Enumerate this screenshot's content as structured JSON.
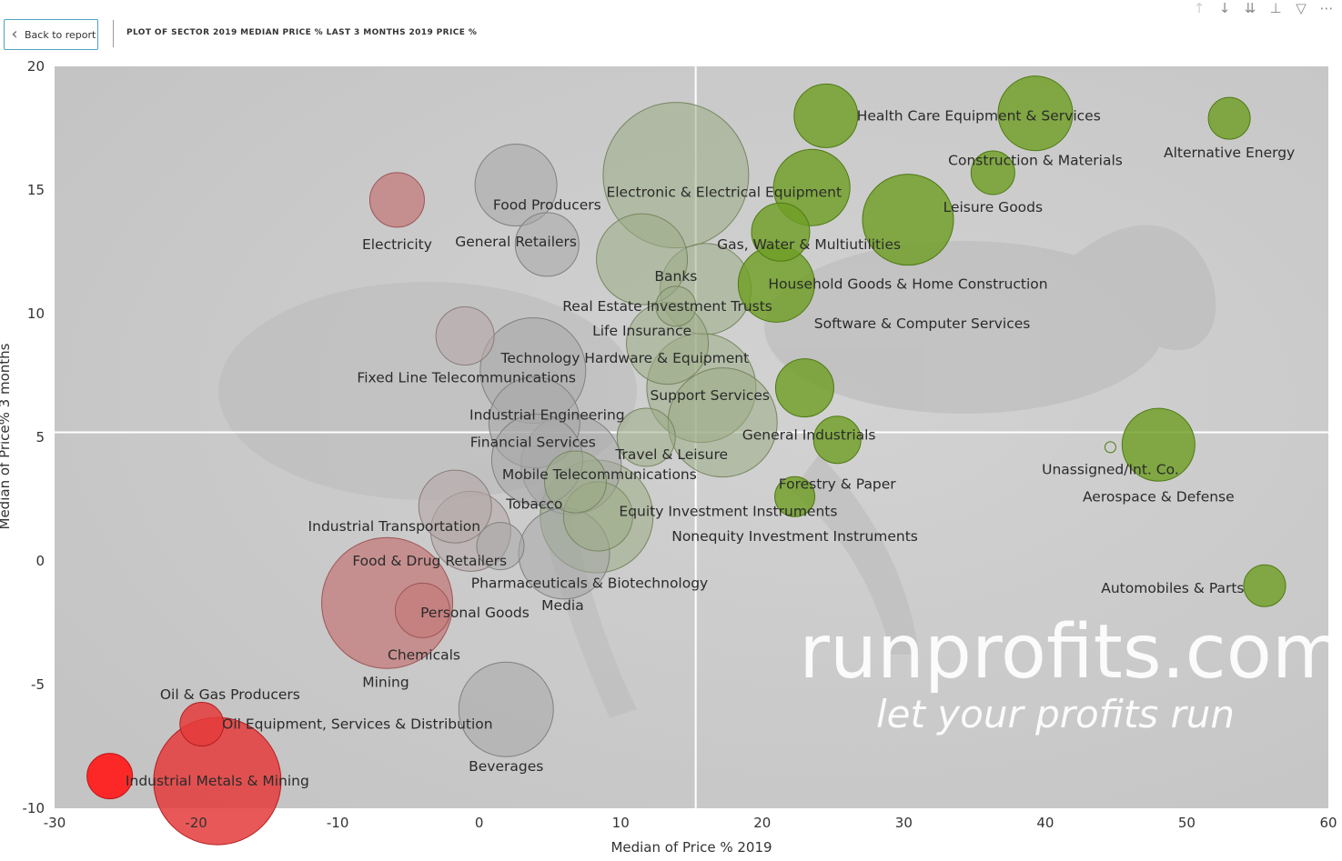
{
  "header": {
    "back_label": "Back to report",
    "title": "PLOT OF SECTOR 2019 MEDIAN PRICE % LAST 3 MONTHS 2019 PRICE %"
  },
  "toolbar": {
    "icons": [
      "arrow-up-icon",
      "arrow-down-icon",
      "double-arrow-down-icon",
      "hierarchy-icon",
      "filter-icon",
      "more-icon"
    ]
  },
  "watermark": {
    "line1": "runprofits.com",
    "line2": "let your profits run"
  },
  "chart_data": {
    "type": "scatter",
    "title": "",
    "xlabel": "Median of Price % 2019",
    "ylabel": "Median of Price% 3 months",
    "xlim": [
      -30,
      60
    ],
    "ylim": [
      -10,
      20
    ],
    "xticks": [
      -30,
      -20,
      -10,
      0,
      10,
      20,
      30,
      40,
      50,
      60
    ],
    "yticks": [
      -10,
      -5,
      0,
      5,
      10,
      15,
      20
    ],
    "reference_lines": {
      "x": 15.3,
      "y": 5.2
    },
    "colors": {
      "green": "#6a9e1f",
      "grey": "#a9a9a9",
      "pink": "#c98383",
      "red": "#ee2222"
    },
    "points": [
      {
        "label": "Health Care Equipment & Services",
        "x": 24.5,
        "y": 18.0,
        "r": 35,
        "color": "green"
      },
      {
        "label": "Construction & Materials",
        "x": 39.3,
        "y": 18.1,
        "r": 41,
        "color": "green"
      },
      {
        "label": "Alternative Energy",
        "x": 53.0,
        "y": 17.9,
        "r": 23,
        "color": "green"
      },
      {
        "label": "Leisure Goods",
        "x": 36.3,
        "y": 15.7,
        "r": 24,
        "color": "green"
      },
      {
        "label": "Software & Computer Services",
        "x": 30.3,
        "y": 13.8,
        "r": 50,
        "color": "green"
      },
      {
        "label": "Electronic & Electrical Equipment",
        "x": 23.5,
        "y": 15.1,
        "r": 42,
        "color": "green"
      },
      {
        "label": "Gas, Water & Multiutilities",
        "x": 21.3,
        "y": 13.3,
        "r": 32,
        "color": "green"
      },
      {
        "label": "Household Goods & Home Construction",
        "x": 21.0,
        "y": 11.2,
        "r": 42,
        "color": "green"
      },
      {
        "label": "General Industrials",
        "x": 23.0,
        "y": 7.0,
        "r": 32,
        "color": "green"
      },
      {
        "label": "Forestry & Paper",
        "x": 25.3,
        "y": 4.9,
        "r": 26,
        "color": "green"
      },
      {
        "label": "Nonequity Investment Instruments",
        "x": 22.3,
        "y": 2.6,
        "r": 22,
        "color": "green"
      },
      {
        "label": "Unassigned/Int. Co.",
        "x": 44.6,
        "y": 4.6,
        "r": 6,
        "color": "green"
      },
      {
        "label": "Aerospace & Defense",
        "x": 48.0,
        "y": 4.7,
        "r": 40,
        "color": "green"
      },
      {
        "label": "Automobiles & Parts",
        "x": 55.5,
        "y": -1.0,
        "r": 23,
        "color": "green"
      },
      {
        "label": "Electronic & Electrical Equipment",
        "x": 13.9,
        "y": 15.6,
        "r": 80,
        "color": "greygreen"
      },
      {
        "label": "Real Estate Investment Trusts",
        "x": 16.0,
        "y": 11.0,
        "r": 50,
        "color": "greygreen"
      },
      {
        "label": "Banks",
        "x": 11.5,
        "y": 12.2,
        "r": 50,
        "color": "greygreen"
      },
      {
        "label": "Life Insurance",
        "x": 13.9,
        "y": 10.3,
        "r": 22,
        "color": "greygreen"
      },
      {
        "label": "Technology Hardware & Equipment",
        "x": 13.3,
        "y": 8.8,
        "r": 45,
        "color": "greygreen"
      },
      {
        "label": "Support Services",
        "x": 15.7,
        "y": 7.0,
        "r": 60,
        "color": "greygreen"
      },
      {
        "label": "Travel & Leisure",
        "x": 17.2,
        "y": 5.6,
        "r": 60,
        "color": "greygreen"
      },
      {
        "label": "Travel & Leisure",
        "x": 11.8,
        "y": 5.0,
        "r": 32,
        "color": "greygreen"
      },
      {
        "label": "Equity Investment Instruments",
        "x": 6.8,
        "y": 3.2,
        "r": 34,
        "color": "greygreen"
      },
      {
        "label": "Pharmaceuticals & Biotechnology",
        "x": 8.3,
        "y": 1.8,
        "r": 62,
        "color": "greygreen"
      },
      {
        "label": "Media",
        "x": 8.4,
        "y": 1.8,
        "r": 38,
        "color": "greygreen"
      },
      {
        "label": "Food Producers",
        "x": 2.6,
        "y": 15.2,
        "r": 45,
        "color": "grey"
      },
      {
        "label": "General Retailers",
        "x": 4.8,
        "y": 12.8,
        "r": 35,
        "color": "grey"
      },
      {
        "label": "Fixed Line Telecommunications",
        "x": 3.8,
        "y": 7.7,
        "r": 58,
        "color": "grey"
      },
      {
        "label": "Industrial Engineering",
        "x": 3.9,
        "y": 5.6,
        "r": 50,
        "color": "grey"
      },
      {
        "label": "Financial Services",
        "x": 4.1,
        "y": 4.1,
        "r": 50,
        "color": "grey"
      },
      {
        "label": "Mobile Telecommunications",
        "x": 6.5,
        "y": 3.9,
        "r": 55,
        "color": "grey"
      },
      {
        "label": "Tobacco",
        "x": 6.0,
        "y": 0.3,
        "r": 50,
        "color": "grey"
      },
      {
        "label": "Industrial Transportation",
        "x": 1.5,
        "y": 0.6,
        "r": 26,
        "color": "grey"
      },
      {
        "label": "Beverages",
        "x": 1.9,
        "y": -6.0,
        "r": 52,
        "color": "grey"
      },
      {
        "label": "Fixed Line Telecommunications",
        "x": -1.0,
        "y": 9.1,
        "r": 32,
        "color": "greypink"
      },
      {
        "label": "Industrial Transportation",
        "x": -1.7,
        "y": 2.2,
        "r": 40,
        "color": "greypink"
      },
      {
        "label": "Food & Drug Retailers",
        "x": -0.6,
        "y": 1.2,
        "r": 44,
        "color": "greypink"
      },
      {
        "label": "Electricity",
        "x": -5.8,
        "y": 14.6,
        "r": 30,
        "color": "pink"
      },
      {
        "label": "Mining",
        "x": -6.5,
        "y": -1.7,
        "r": 72,
        "color": "pink"
      },
      {
        "label": "Personal Goods",
        "x": -4.0,
        "y": -2.0,
        "r": 30,
        "color": "pink"
      },
      {
        "label": "Oil & Gas Producers",
        "x": -19.6,
        "y": -6.6,
        "r": 24,
        "color": "red"
      },
      {
        "label": "Oil Equipment, Services & Distribution",
        "x": -18.5,
        "y": -8.9,
        "r": 70,
        "color": "red"
      },
      {
        "label": "Industrial Metals & Mining",
        "x": -26.1,
        "y": -8.7,
        "r": 25,
        "color": "redbright"
      }
    ],
    "labels": [
      {
        "text": "Health Care Equipment & Services",
        "x": 35.3,
        "y": 18.0
      },
      {
        "text": "Alternative Energy",
        "x": 53.0,
        "y": 16.5
      },
      {
        "text": "Construction & Materials",
        "x": 39.3,
        "y": 16.2
      },
      {
        "text": "Leisure Goods",
        "x": 36.3,
        "y": 14.3
      },
      {
        "text": "Electronic & Electrical Equipment",
        "x": 17.3,
        "y": 14.9
      },
      {
        "text": "Gas, Water & Multiutilities",
        "x": 23.3,
        "y": 12.8
      },
      {
        "text": "Household Goods & Home Construction",
        "x": 30.3,
        "y": 11.2
      },
      {
        "text": "Software & Computer Services",
        "x": 31.3,
        "y": 9.6
      },
      {
        "text": "General Industrials",
        "x": 23.3,
        "y": 5.1
      },
      {
        "text": "Forestry & Paper",
        "x": 25.3,
        "y": 3.1
      },
      {
        "text": "Nonequity Investment Instruments",
        "x": 22.3,
        "y": 1.0
      },
      {
        "text": "Unassigned/Int. Co.",
        "x": 44.6,
        "y": 3.7
      },
      {
        "text": "Aerospace & Defense",
        "x": 48.0,
        "y": 2.6
      },
      {
        "text": "Automobiles & Parts",
        "x": 49.0,
        "y": -1.1
      },
      {
        "text": "Food Producers",
        "x": 4.8,
        "y": 14.4
      },
      {
        "text": "General Retailers",
        "x": 2.6,
        "y": 12.9
      },
      {
        "text": "Electricity",
        "x": -5.8,
        "y": 12.8
      },
      {
        "text": "Banks",
        "x": 13.9,
        "y": 11.5
      },
      {
        "text": "Real Estate Investment Trusts",
        "x": 13.3,
        "y": 10.3
      },
      {
        "text": "Life Insurance",
        "x": 11.5,
        "y": 9.3
      },
      {
        "text": "Technology Hardware & Equipment",
        "x": 10.3,
        "y": 8.2
      },
      {
        "text": "Fixed Line Telecommunications",
        "x": -0.9,
        "y": 7.4
      },
      {
        "text": "Support Services",
        "x": 16.3,
        "y": 6.7
      },
      {
        "text": "Industrial Engineering",
        "x": 4.8,
        "y": 5.9
      },
      {
        "text": "Financial Services",
        "x": 3.8,
        "y": 4.8
      },
      {
        "text": "Travel & Leisure",
        "x": 13.6,
        "y": 4.3
      },
      {
        "text": "Mobile Telecommunications",
        "x": 8.5,
        "y": 3.5
      },
      {
        "text": "Tobacco",
        "x": 3.9,
        "y": 2.3
      },
      {
        "text": "Equity Investment Instruments",
        "x": 17.6,
        "y": 2.0
      },
      {
        "text": "Industrial Transportation",
        "x": -6.0,
        "y": 1.4
      },
      {
        "text": "Food & Drug Retailers",
        "x": -3.5,
        "y": 0.0
      },
      {
        "text": "Pharmaceuticals & Biotechnology",
        "x": 7.8,
        "y": -0.9
      },
      {
        "text": "Media",
        "x": 5.9,
        "y": -1.8
      },
      {
        "text": "Personal Goods",
        "x": -0.3,
        "y": -2.1
      },
      {
        "text": "Chemicals",
        "x": -3.9,
        "y": -3.8
      },
      {
        "text": "Mining",
        "x": -6.6,
        "y": -4.9
      },
      {
        "text": "Oil & Gas Producers",
        "x": -17.6,
        "y": -5.4
      },
      {
        "text": "Oil Equipment, Services & Distribution",
        "x": -8.6,
        "y": -6.6
      },
      {
        "text": "Beverages",
        "x": 1.9,
        "y": -8.3
      },
      {
        "text": "Industrial Metals & Mining",
        "x": -18.5,
        "y": -8.9
      }
    ]
  }
}
